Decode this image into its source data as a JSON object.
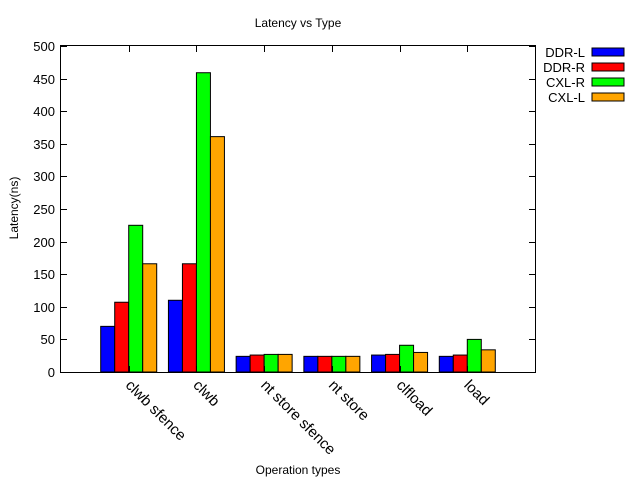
{
  "chart_data": {
    "type": "bar",
    "title": "Latency vs Type",
    "xlabel": "Operation types",
    "ylabel": "Latency(ns)",
    "categories": [
      "clwb sfence",
      "clwb",
      "nt store sfence",
      "nt store",
      "clfload",
      "load"
    ],
    "series": [
      {
        "name": "DDR-L",
        "color": "#0000ff",
        "values": [
          70,
          110,
          24,
          24,
          26,
          24
        ]
      },
      {
        "name": "DDR-R",
        "color": "#ff0000",
        "values": [
          107,
          166,
          26,
          24,
          27,
          26
        ]
      },
      {
        "name": "CXL-R",
        "color": "#00ff00",
        "values": [
          225,
          459,
          27,
          24,
          41,
          50
        ]
      },
      {
        "name": "CXL-L",
        "color": "#ffa500",
        "values": [
          166,
          361,
          27,
          24,
          30,
          34
        ]
      }
    ],
    "ylim": [
      0,
      500
    ],
    "yticks": [
      0,
      50,
      100,
      150,
      200,
      250,
      300,
      350,
      400,
      450,
      500
    ],
    "grid": false,
    "legend_position": "top-right-outside"
  }
}
